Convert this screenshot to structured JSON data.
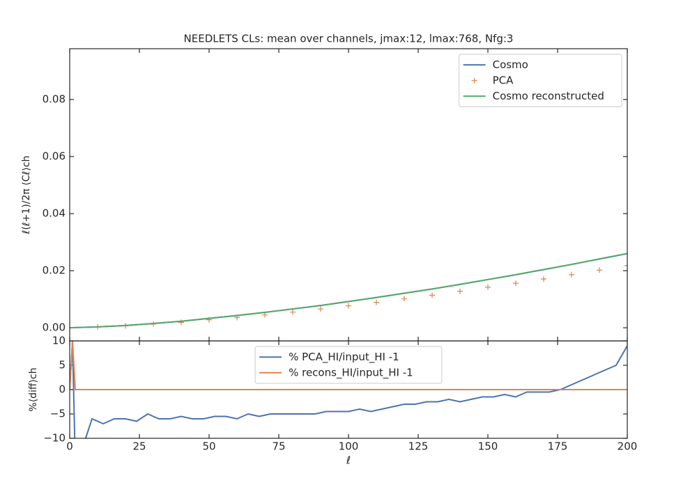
{
  "chart_data": [
    {
      "type": "line",
      "title": "NEEDLETS CLs: mean over channels, jmax:12, lmax:768, Nfg:3",
      "ylabel": "ℓ(ℓ+1)/2π ⟨Cℓ⟩ch",
      "x": [
        0,
        10,
        20,
        30,
        40,
        50,
        60,
        70,
        80,
        90,
        100,
        110,
        120,
        130,
        140,
        150,
        160,
        170,
        180,
        190,
        200
      ],
      "series": [
        {
          "name": "Cosmo",
          "color": "#4c72b0",
          "values": [
            0,
            0.0003,
            0.0008,
            0.0015,
            0.0023,
            0.0033,
            0.0043,
            0.0054,
            0.0066,
            0.0078,
            0.0092,
            0.0106,
            0.0121,
            0.0136,
            0.0152,
            0.0169,
            0.0186,
            0.0204,
            0.0222,
            0.0241,
            0.026
          ]
        },
        {
          "name": "PCA",
          "color": "#dd8452",
          "marker": "+",
          "values": [
            0,
            0.0003,
            0.0007,
            0.0013,
            0.0019,
            0.0028,
            0.0036,
            0.0045,
            0.0055,
            0.0066,
            0.0077,
            0.0089,
            0.0102,
            0.0114,
            0.0128,
            0.0142,
            0.0156,
            0.0171,
            0.0186,
            0.0202,
            0.0218
          ]
        },
        {
          "name": "Cosmo reconstructed",
          "color": "#55a868",
          "values": [
            0,
            0.0003,
            0.0008,
            0.0015,
            0.0023,
            0.0033,
            0.0043,
            0.0054,
            0.0066,
            0.0078,
            0.0092,
            0.0106,
            0.0121,
            0.0136,
            0.0152,
            0.0169,
            0.0186,
            0.0204,
            0.0222,
            0.0241,
            0.026
          ]
        }
      ],
      "xlim": [
        0,
        200
      ],
      "xticks": [
        0,
        25,
        50,
        75,
        100,
        125,
        150,
        175,
        200
      ],
      "ylim": [
        -0.0046,
        0.0978
      ],
      "yticks": [
        {
          "value": 0,
          "label": "0.00"
        },
        {
          "value": 0.02,
          "label": "0.02"
        },
        {
          "value": 0.04,
          "label": "0.04"
        },
        {
          "value": 0.06,
          "label": "0.06"
        },
        {
          "value": 0.08,
          "label": "0.08"
        }
      ],
      "legend": "upper right"
    },
    {
      "type": "line",
      "xlabel": "ℓ",
      "ylabel": "%⟨diff⟩ch",
      "x": [
        0,
        1,
        2,
        4,
        8,
        12,
        16,
        20,
        24,
        28,
        32,
        36,
        40,
        44,
        48,
        52,
        56,
        60,
        64,
        68,
        72,
        76,
        80,
        84,
        88,
        92,
        96,
        100,
        104,
        108,
        112,
        116,
        120,
        124,
        128,
        132,
        136,
        140,
        144,
        148,
        152,
        156,
        160,
        164,
        168,
        172,
        176,
        180,
        184,
        188,
        192,
        196,
        200
      ],
      "series": [
        {
          "name": "% PCA_HI/input_HI -1",
          "color": "#4c72b0",
          "values": [
            0,
            10,
            -15,
            -13,
            -6,
            -7,
            -6,
            -6,
            -6.5,
            -5,
            -6,
            -6,
            -5.5,
            -6,
            -6,
            -5.5,
            -5.5,
            -6,
            -5,
            -5.5,
            -5,
            -5,
            -5,
            -5,
            -5,
            -4.5,
            -4.5,
            -4.5,
            -4,
            -4.5,
            -4,
            -3.5,
            -3,
            -3,
            -2.5,
            -2.5,
            -2,
            -2.5,
            -2,
            -1.5,
            -1.5,
            -1,
            -1.5,
            -0.5,
            -0.5,
            -0.5,
            0,
            1,
            2,
            3,
            4,
            5,
            9
          ]
        },
        {
          "name": "% recons_HI/input_HI -1",
          "color": "#dd8452",
          "values": [
            0,
            10,
            0,
            0,
            0,
            0,
            0,
            0,
            0,
            0,
            0,
            0,
            0,
            0,
            0,
            0,
            0,
            0,
            0,
            0,
            0,
            0,
            0,
            0,
            0,
            0,
            0,
            0,
            0,
            0,
            0,
            0,
            0,
            0,
            0,
            0,
            0,
            0,
            0,
            0,
            0,
            0,
            0,
            0,
            0,
            0,
            0,
            0,
            0,
            0,
            0,
            0,
            0
          ]
        }
      ],
      "reference_line": 0,
      "xlim": [
        0,
        200
      ],
      "xticks": [
        0,
        25,
        50,
        75,
        100,
        125,
        150,
        175,
        200
      ],
      "ylim": [
        -10,
        10
      ],
      "yticks": [
        {
          "value": -10,
          "label": "−10"
        },
        {
          "value": -5,
          "label": "−5"
        },
        0,
        5,
        10
      ],
      "legend": "upper center"
    }
  ]
}
